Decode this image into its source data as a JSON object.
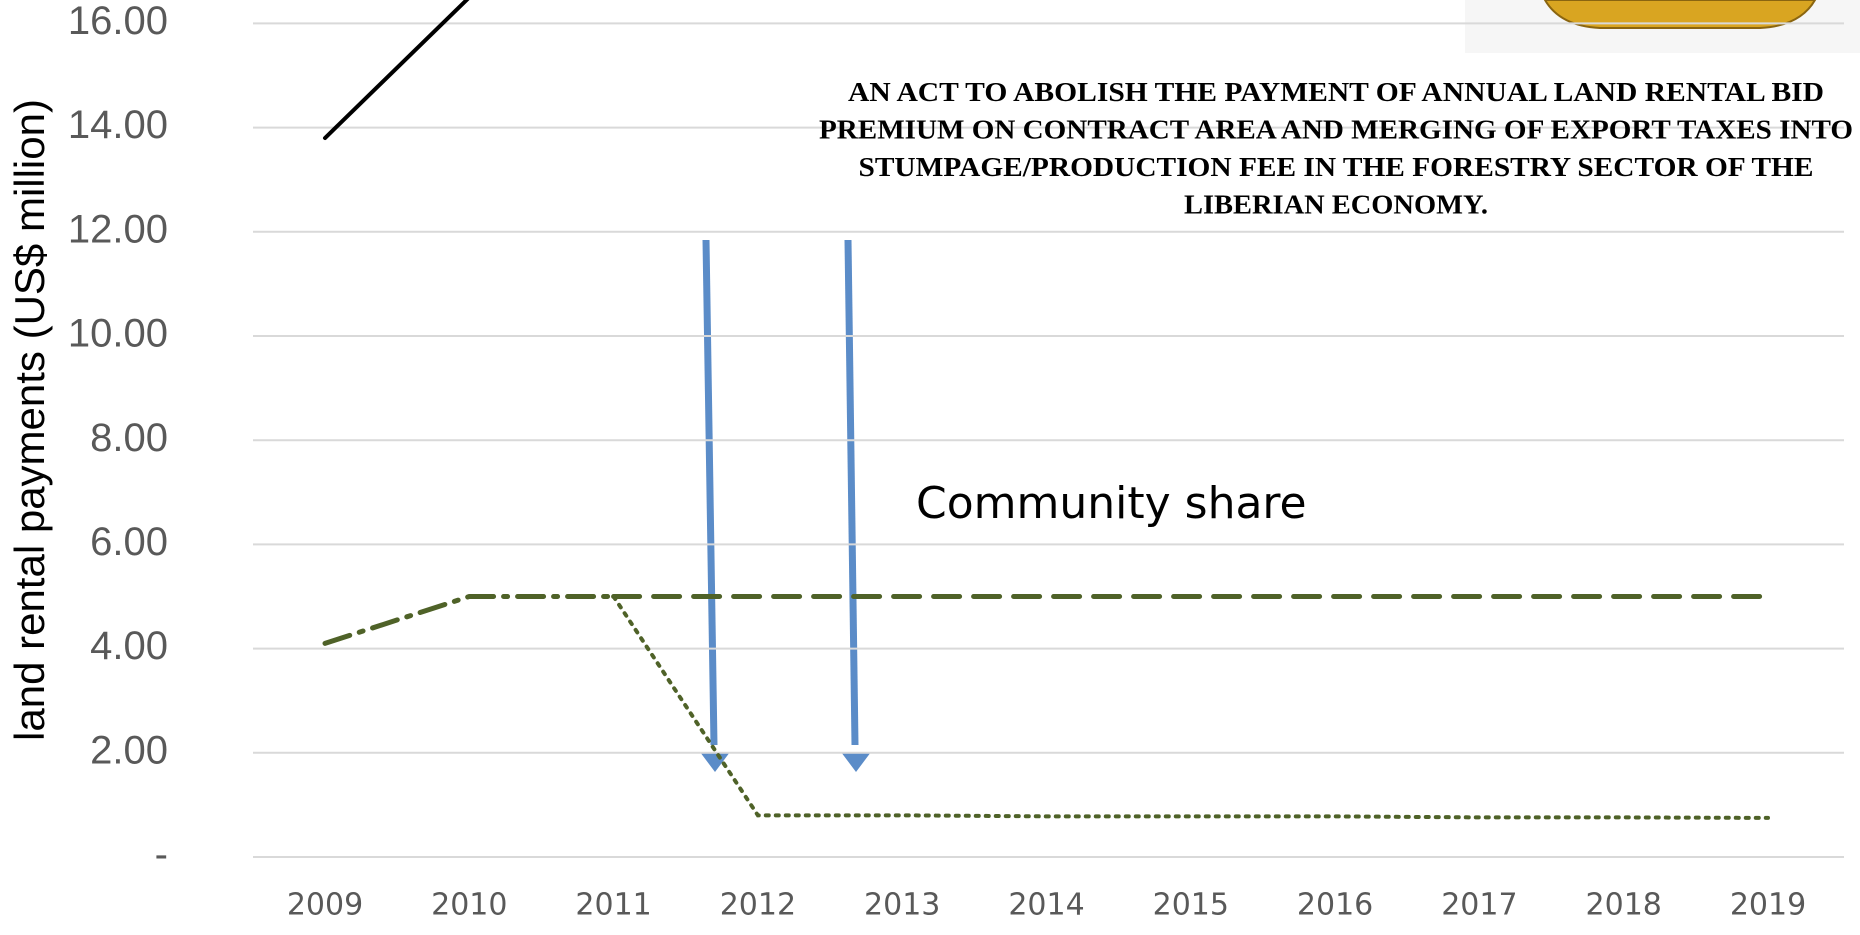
{
  "chart_data": {
    "type": "line",
    "title_lines": [
      "AN ACT TO ABOLISH THE PAYMENT OF ANNUAL LAND RENTAL BID",
      "PREMIUM ON CONTRACT AREA AND MERGING OF EXPORT TAXES INTO",
      "STUMPAGE/PRODUCTION FEE IN THE FORESTRY SECTOR OF THE",
      "LIBERIAN ECONOMY."
    ],
    "annotation": "Community share",
    "y_label": "land rental payments (US$ million)",
    "categories": [
      "2009",
      "2010",
      "2011",
      "2012",
      "2013",
      "2014",
      "2015",
      "2016",
      "2017",
      "2018",
      "2019"
    ],
    "series": [
      {
        "color": "#000000",
        "line_style": "solid",
        "values": [
          13.8,
          16.5,
          null,
          null,
          null,
          null,
          null,
          null,
          null,
          null,
          null
        ]
      },
      {
        "color": "#4f6228",
        "line_style": "dashdot",
        "values": [
          4.1,
          5.0,
          5.0,
          null,
          null,
          null,
          null,
          null,
          null,
          null,
          null
        ]
      },
      {
        "color": "#4f6228",
        "line_style": "dashed",
        "values": [
          null,
          null,
          5.0,
          5.0,
          5.0,
          5.0,
          5.0,
          5.0,
          5.0,
          5.0,
          5.0
        ]
      },
      {
        "color": "#4f6228",
        "line_style": "dotted",
        "values": [
          null,
          null,
          5.0,
          0.8,
          0.8,
          0.78,
          0.78,
          0.78,
          0.76,
          0.76,
          0.75
        ]
      }
    ],
    "ylim": [
      0,
      16
    ],
    "yticks": [
      {
        "value": 0,
        "label": "-"
      },
      {
        "value": 2,
        "label": "2.00"
      },
      {
        "value": 4,
        "label": "4.00"
      },
      {
        "value": 6,
        "label": "6.00"
      },
      {
        "value": 8,
        "label": "8.00"
      },
      {
        "value": 10,
        "label": "10.00"
      },
      {
        "value": 12,
        "label": "12.00"
      },
      {
        "value": 14,
        "label": "14.00"
      },
      {
        "value": 16,
        "label": "16.00"
      }
    ],
    "grid": true
  }
}
